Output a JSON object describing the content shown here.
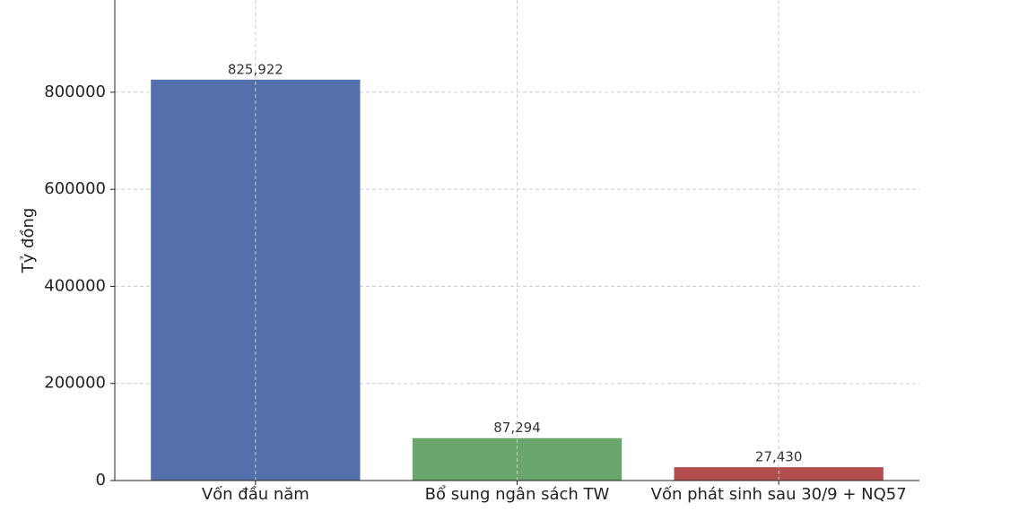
{
  "chart_data": {
    "type": "bar",
    "y_label": "Tỷ đồng",
    "categories": [
      "Vốn đầu năm",
      "Bổ sung ngân sách TW",
      "Vốn phát sinh sau 30/9 + NQ57"
    ],
    "values": [
      825922,
      87294,
      27430
    ],
    "value_labels": [
      "825,922",
      "87,294",
      "27,430"
    ],
    "colors": [
      "#5470aa",
      "#6aa56e",
      "#b24e4e"
    ],
    "ylim": [
      0,
      990000
    ],
    "yticks": [
      0,
      200000,
      400000,
      600000,
      800000
    ],
    "grid": true
  }
}
